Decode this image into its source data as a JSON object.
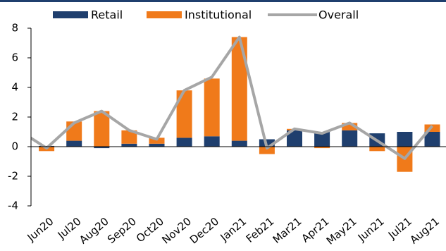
{
  "chart_data": {
    "type": "bar",
    "categories": [
      null,
      "Jun20",
      "Jul20",
      "Aug20",
      "Sep20",
      "Oct20",
      "Nov20",
      "Dec20",
      "Jan21",
      "Feb21",
      "Mar21",
      "Apr21",
      "May21",
      "Jun21",
      "Jul21",
      "Aug21"
    ],
    "series": [
      {
        "name": "Retail",
        "type": "bar",
        "color": "#1f3f6e",
        "values": [
          null,
          0.05,
          0.4,
          -0.1,
          0.2,
          0.2,
          0.6,
          0.7,
          0.4,
          0.5,
          1.1,
          1.0,
          1.1,
          0.9,
          1.0,
          1.0
        ]
      },
      {
        "name": "Institutional",
        "type": "bar",
        "color": "#f07a1a",
        "values": [
          null,
          -0.3,
          1.3,
          2.4,
          0.9,
          0.4,
          3.2,
          3.9,
          7.0,
          -0.5,
          0.1,
          -0.1,
          0.5,
          -0.3,
          -1.7,
          0.5
        ]
      },
      {
        "name": "Overall",
        "type": "line",
        "color": "#a6a6a6",
        "values": [
          1.1,
          -0.1,
          1.6,
          2.4,
          1.1,
          0.5,
          3.8,
          4.7,
          7.4,
          -0.1,
          1.2,
          0.9,
          1.6,
          0.4,
          -0.8,
          1.4
        ]
      }
    ],
    "ylim": [
      -4,
      8
    ],
    "yticks": [
      -4,
      -2,
      0,
      2,
      4,
      6,
      8
    ],
    "stacked": true
  }
}
